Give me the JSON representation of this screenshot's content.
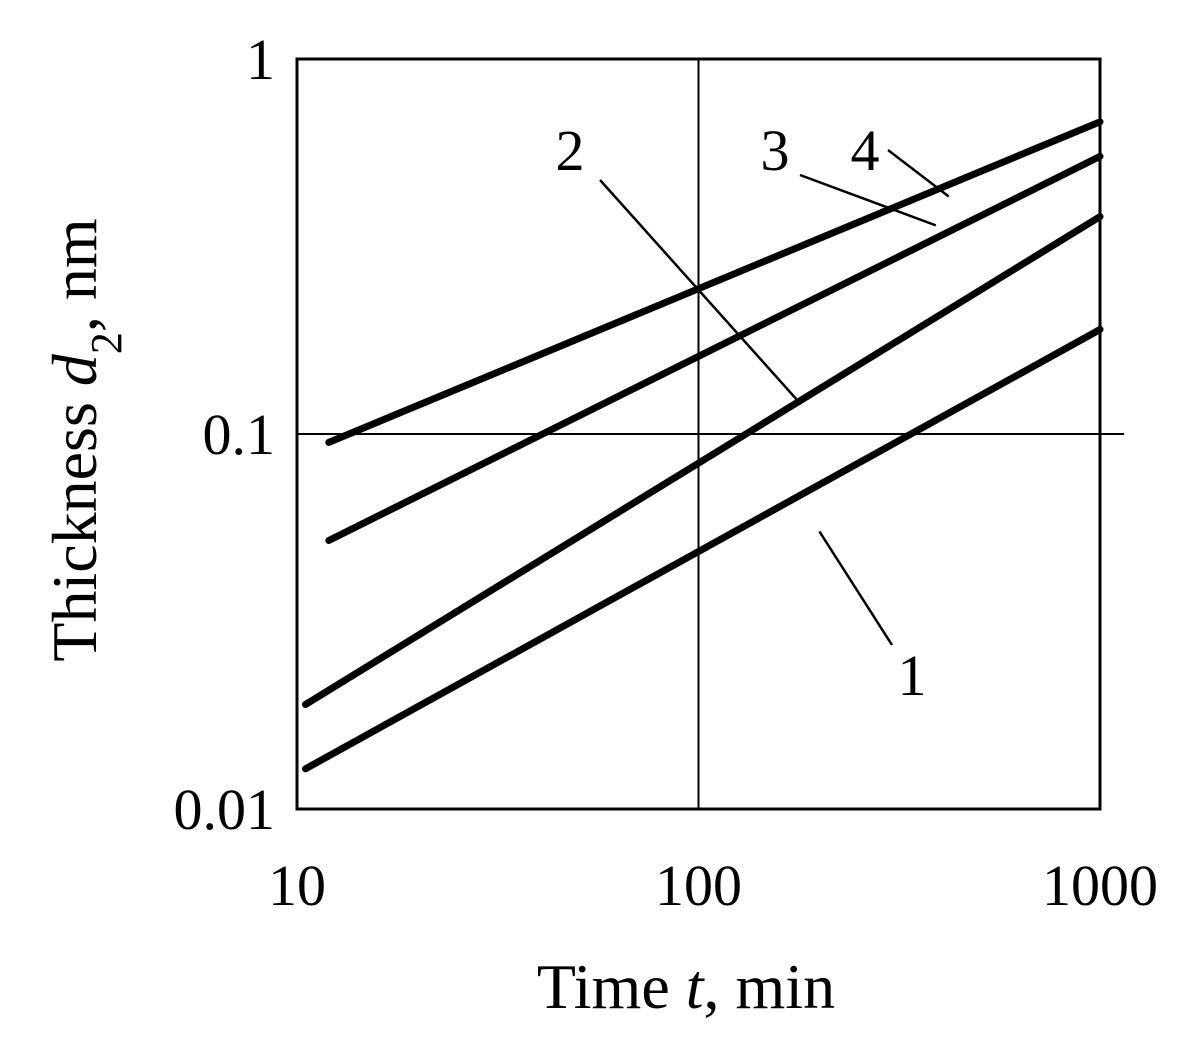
{
  "chart_data": {
    "type": "line",
    "xlabel": {
      "prefix": "Time ",
      "var": "t",
      "suffix": ", min"
    },
    "ylabel": {
      "prefix": "Thickness ",
      "var": "d",
      "sub": "2",
      "suffix": ", nm"
    },
    "xscale": "log",
    "yscale": "log",
    "xlim": [
      10,
      1000
    ],
    "ylim": [
      0.01,
      1
    ],
    "xticks": [
      {
        "value": 10,
        "label": "10"
      },
      {
        "value": 100,
        "label": "100"
      },
      {
        "value": 1000,
        "label": "1000"
      }
    ],
    "yticks": [
      {
        "value": 0.01,
        "label": "0.01"
      },
      {
        "value": 0.1,
        "label": "0.1"
      },
      {
        "value": 1,
        "label": "1"
      }
    ],
    "grid": true,
    "series": [
      {
        "label": "1",
        "x": [
          10.5,
          1000
        ],
        "y": [
          0.0128,
          0.19
        ]
      },
      {
        "label": "2",
        "x": [
          10.5,
          1000
        ],
        "y": [
          0.019,
          0.38
        ]
      },
      {
        "label": "3",
        "x": [
          12,
          1000
        ],
        "y": [
          0.052,
          0.55
        ]
      },
      {
        "label": "4",
        "x": [
          12,
          1000
        ],
        "y": [
          0.095,
          0.68
        ]
      }
    ],
    "annotations": [
      {
        "series": "1",
        "text": "1",
        "point": [
          200,
          0.055
        ]
      },
      {
        "series": "2",
        "text": "2",
        "point": [
          180,
          0.12
        ]
      },
      {
        "series": "3",
        "text": "3",
        "point": [
          390,
          0.36
        ]
      },
      {
        "series": "4",
        "text": "4",
        "point": [
          420,
          0.43
        ]
      }
    ]
  }
}
